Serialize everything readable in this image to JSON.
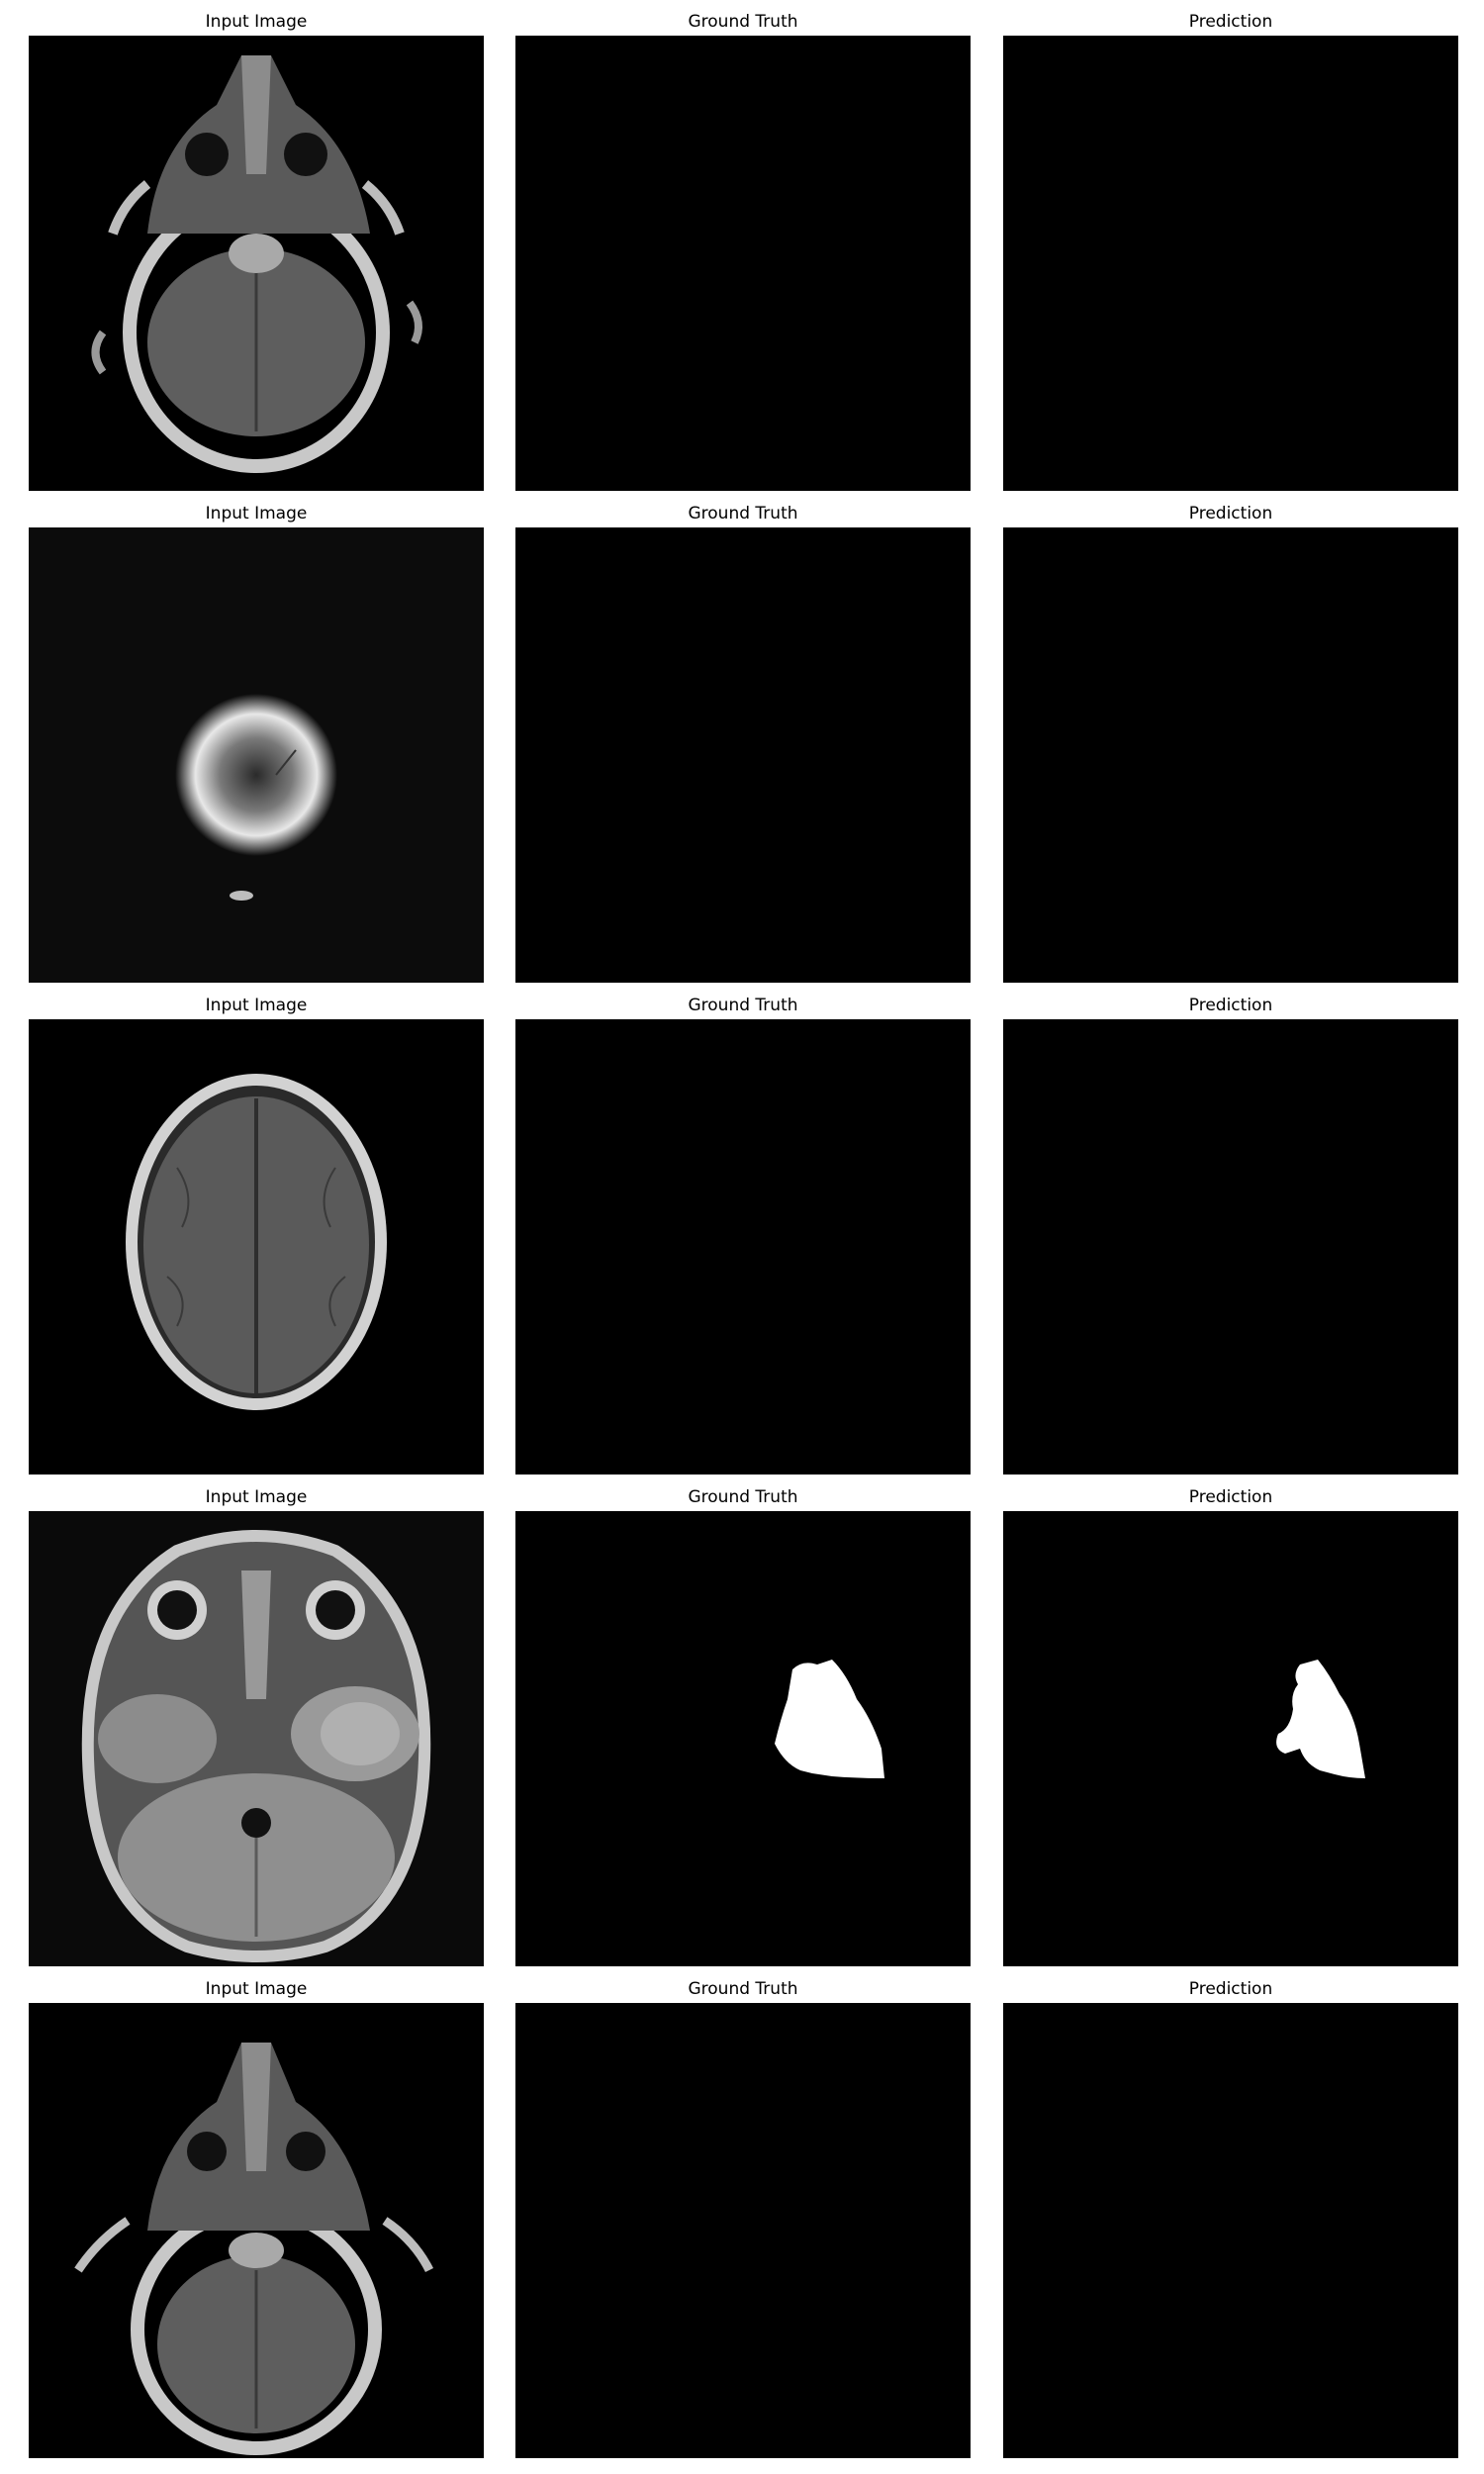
{
  "rows": [
    {
      "input_title": "Input Image",
      "gt_title": "Ground Truth",
      "pred_title": "Prediction",
      "input_scan": "mri-axial-skull-base",
      "ground_truth_mask": "empty",
      "prediction_mask": "empty"
    },
    {
      "input_title": "Input Image",
      "gt_title": "Ground Truth",
      "pred_title": "Prediction",
      "input_scan": "mri-noisy-small-ring",
      "ground_truth_mask": "empty",
      "prediction_mask": "empty"
    },
    {
      "input_title": "Input Image",
      "gt_title": "Ground Truth",
      "pred_title": "Prediction",
      "input_scan": "mri-axial-upper-brain",
      "ground_truth_mask": "empty",
      "prediction_mask": "empty"
    },
    {
      "input_title": "Input Image",
      "gt_title": "Ground Truth",
      "pred_title": "Prediction",
      "input_scan": "mri-axial-orbits-temporal-lesion",
      "ground_truth_mask": "tumor-region",
      "prediction_mask": "tumor-region"
    },
    {
      "input_title": "Input Image",
      "gt_title": "Ground Truth",
      "pred_title": "Prediction",
      "input_scan": "mri-axial-skull-base",
      "ground_truth_mask": "empty",
      "prediction_mask": "empty"
    }
  ],
  "colors": {
    "background": "#ffffff",
    "panel": "#000000",
    "mask": "#ffffff"
  }
}
